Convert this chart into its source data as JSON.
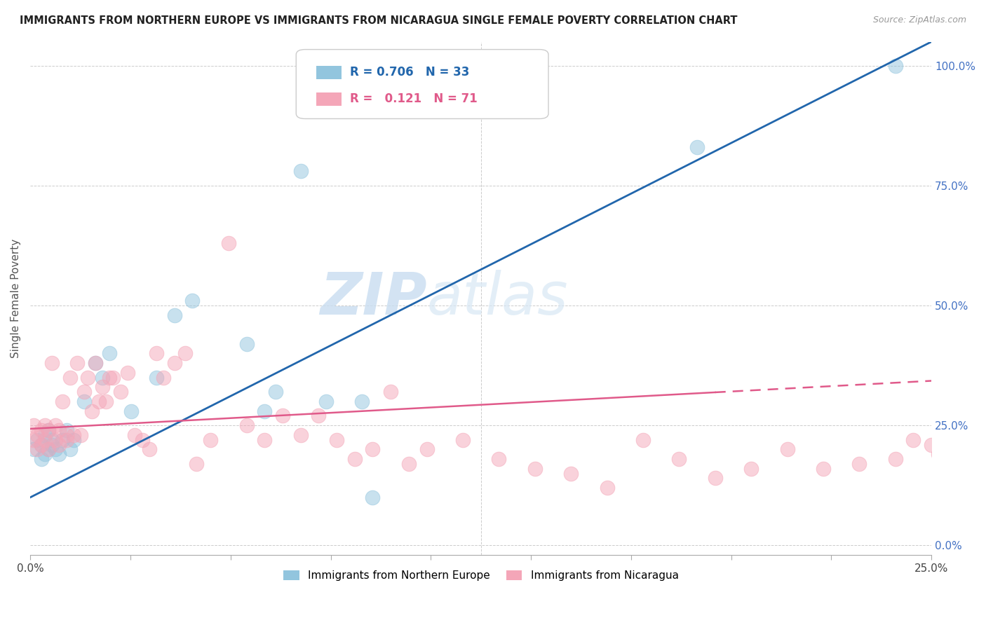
{
  "title": "IMMIGRANTS FROM NORTHERN EUROPE VS IMMIGRANTS FROM NICARAGUA SINGLE FEMALE POVERTY CORRELATION CHART",
  "source": "Source: ZipAtlas.com",
  "ylabel": "Single Female Poverty",
  "legend_label1": "Immigrants from Northern Europe",
  "legend_label2": "Immigrants from Nicaragua",
  "R1": 0.706,
  "N1": 33,
  "R2": 0.121,
  "N2": 71,
  "color_blue": "#92c5de",
  "color_pink": "#f4a6b8",
  "line_blue": "#2166ac",
  "line_pink": "#e05a8a",
  "xlim": [
    0.0,
    0.25
  ],
  "ylim": [
    -0.02,
    1.05
  ],
  "xticks": [
    0.0,
    0.25
  ],
  "yticks": [
    0.0,
    0.25,
    0.5,
    0.75,
    1.0
  ],
  "blue_x": [
    0.001,
    0.002,
    0.003,
    0.003,
    0.004,
    0.004,
    0.005,
    0.005,
    0.006,
    0.006,
    0.007,
    0.008,
    0.009,
    0.01,
    0.011,
    0.012,
    0.015,
    0.018,
    0.02,
    0.022,
    0.028,
    0.035,
    0.04,
    0.045,
    0.06,
    0.065,
    0.068,
    0.075,
    0.082,
    0.092,
    0.095,
    0.185,
    0.24
  ],
  "blue_y": [
    0.2,
    0.22,
    0.18,
    0.21,
    0.19,
    0.23,
    0.2,
    0.24,
    0.22,
    0.21,
    0.2,
    0.19,
    0.22,
    0.24,
    0.2,
    0.22,
    0.3,
    0.38,
    0.35,
    0.4,
    0.28,
    0.35,
    0.48,
    0.51,
    0.42,
    0.28,
    0.32,
    0.78,
    0.3,
    0.3,
    0.1,
    0.83,
    1.0
  ],
  "pink_x": [
    0.001,
    0.001,
    0.002,
    0.002,
    0.003,
    0.003,
    0.004,
    0.004,
    0.005,
    0.005,
    0.006,
    0.007,
    0.007,
    0.008,
    0.008,
    0.009,
    0.01,
    0.01,
    0.011,
    0.012,
    0.013,
    0.014,
    0.015,
    0.016,
    0.017,
    0.018,
    0.019,
    0.02,
    0.021,
    0.022,
    0.023,
    0.025,
    0.027,
    0.029,
    0.031,
    0.033,
    0.035,
    0.037,
    0.04,
    0.043,
    0.046,
    0.05,
    0.055,
    0.06,
    0.065,
    0.07,
    0.075,
    0.08,
    0.085,
    0.09,
    0.095,
    0.1,
    0.105,
    0.11,
    0.12,
    0.13,
    0.14,
    0.15,
    0.16,
    0.17,
    0.18,
    0.19,
    0.2,
    0.21,
    0.22,
    0.23,
    0.24,
    0.245,
    0.25,
    0.252,
    0.253
  ],
  "pink_y": [
    0.22,
    0.25,
    0.2,
    0.23,
    0.21,
    0.24,
    0.22,
    0.25,
    0.2,
    0.24,
    0.38,
    0.22,
    0.25,
    0.21,
    0.24,
    0.3,
    0.23,
    0.22,
    0.35,
    0.23,
    0.38,
    0.23,
    0.32,
    0.35,
    0.28,
    0.38,
    0.3,
    0.33,
    0.3,
    0.35,
    0.35,
    0.32,
    0.36,
    0.23,
    0.22,
    0.2,
    0.4,
    0.35,
    0.38,
    0.4,
    0.17,
    0.22,
    0.63,
    0.25,
    0.22,
    0.27,
    0.23,
    0.27,
    0.22,
    0.18,
    0.2,
    0.32,
    0.17,
    0.2,
    0.22,
    0.18,
    0.16,
    0.15,
    0.12,
    0.22,
    0.18,
    0.14,
    0.16,
    0.2,
    0.16,
    0.17,
    0.18,
    0.22,
    0.21,
    0.19,
    0.18
  ],
  "watermark_zip": "ZIP",
  "watermark_atlas": "atlas",
  "background_color": "#ffffff",
  "grid_color": "#cccccc",
  "right_ytick_color": "#4472c4",
  "blue_line_intercept": 0.1,
  "blue_line_slope": 3.8,
  "pink_line_intercept": 0.243,
  "pink_line_slope": 0.4
}
